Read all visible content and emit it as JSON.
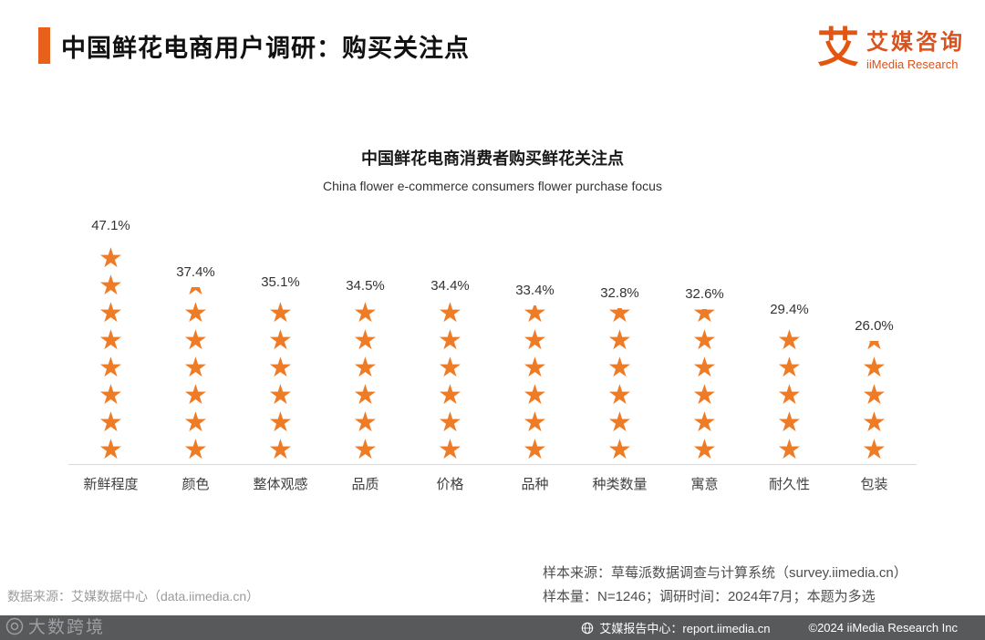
{
  "header": {
    "title": "中国鲜花电商用户调研：购买关注点",
    "logo": {
      "glyph": "艾",
      "brand_cn": "艾媒咨询",
      "brand_en": "iiMedia Research"
    }
  },
  "chart_data": {
    "type": "bar",
    "bar_style": "star-stack",
    "title": "中国鲜花电商消费者购买鲜花关注点",
    "subtitle": "China flower e-commerce consumers flower purchase focus",
    "categories": [
      "新鲜程度",
      "颜色",
      "整体观感",
      "品质",
      "价格",
      "品种",
      "种类数量",
      "寓意",
      "耐久性",
      "包装"
    ],
    "values": [
      47.1,
      37.4,
      35.1,
      34.5,
      34.4,
      33.4,
      32.8,
      32.6,
      29.4,
      26.0
    ],
    "value_labels": [
      "47.1%",
      "37.4%",
      "35.1%",
      "34.5%",
      "34.4%",
      "33.4%",
      "32.8%",
      "32.6%",
      "29.4%",
      "26.0%"
    ],
    "unit": "%",
    "ylim": [
      0,
      50
    ],
    "grid": false,
    "legend": "none",
    "bar_color": "#ee7b25"
  },
  "footnotes": {
    "data_source": "数据来源：艾媒数据中心（data.iimedia.cn）",
    "sample_source": "样本来源：草莓派数据调查与计算系统（survey.iimedia.cn）",
    "sample_info": "样本量：N=1246；调研时间：2024年7月；本题为多选"
  },
  "footer_bar": {
    "report_center": "艾媒报告中心：report.iimedia.cn",
    "copyright": "©2024  iiMedia Research Inc"
  },
  "watermark": {
    "text": "大数跨境"
  },
  "colors": {
    "accent": "#e8611c",
    "star": "#ee7b25",
    "footer_bg": "#58595b",
    "gray_text": "#9b9b9b"
  }
}
